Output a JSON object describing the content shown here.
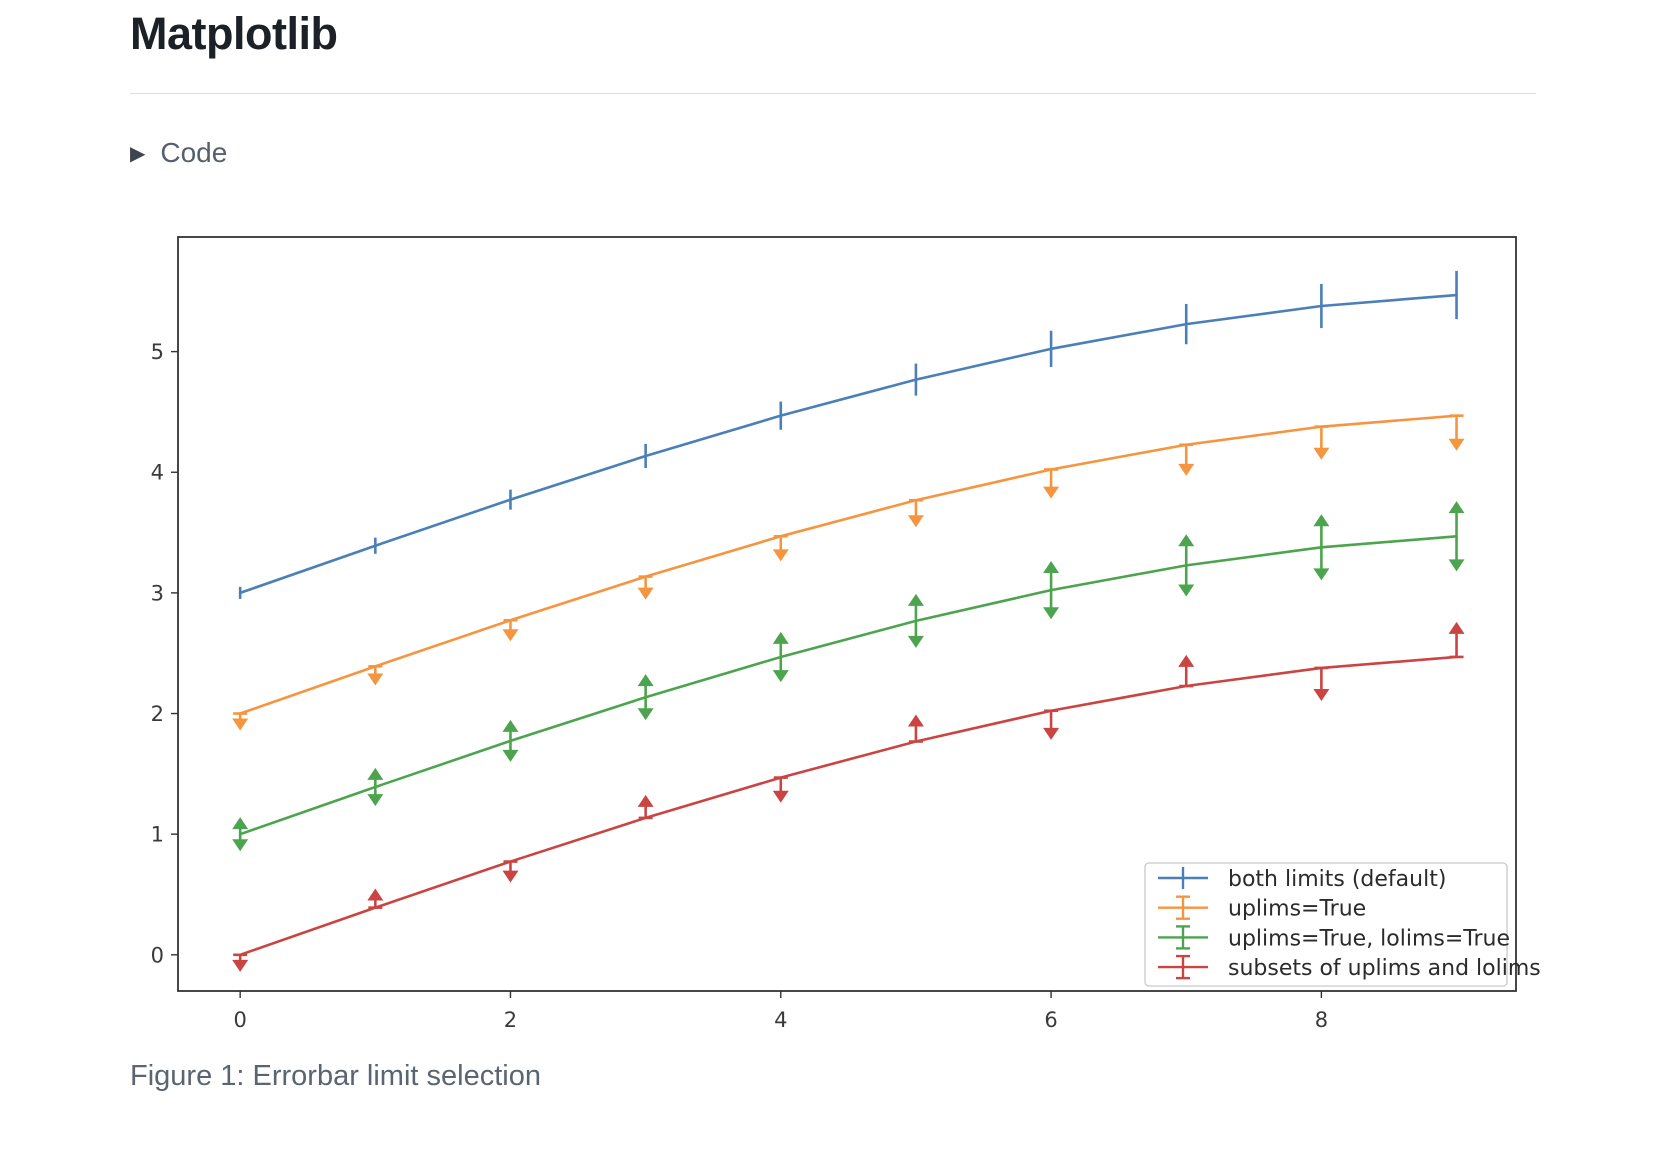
{
  "page": {
    "title": "Matplotlib",
    "code_toggle_label": "Code",
    "caption": "Figure 1: Errorbar limit selection"
  },
  "chart_data": {
    "type": "line",
    "title": "",
    "xlabel": "",
    "ylabel": "",
    "grid": false,
    "legend_position": "lower right",
    "xlim": [
      -0.46,
      9.44
    ],
    "ylim": [
      -0.3,
      5.95
    ],
    "xticks": [
      0,
      2,
      4,
      6,
      8
    ],
    "yticks": [
      0,
      1,
      2,
      3,
      4,
      5
    ],
    "axis_color": "#333333",
    "tick_label_color": "#3a3a3a",
    "legend_border_color": "#c9c9c9",
    "legend_text_color": "#2b2b2b",
    "x": [
      0,
      1,
      2,
      3,
      4,
      5,
      6,
      7,
      8,
      9
    ],
    "yerr": [
      0.05,
      0.067,
      0.083,
      0.1,
      0.117,
      0.133,
      0.15,
      0.167,
      0.183,
      0.2
    ],
    "series": [
      {
        "name": "both limits (default)",
        "color": "#4a7fb8",
        "limit_style": "bars",
        "values": [
          3.0,
          3.391,
          3.773,
          4.135,
          4.469,
          4.768,
          5.023,
          5.228,
          5.378,
          5.469
        ]
      },
      {
        "name": "uplims=True",
        "color": "#f6953f",
        "limit_style": "uplims",
        "values": [
          2.0,
          2.391,
          2.773,
          3.135,
          3.469,
          3.768,
          4.023,
          4.228,
          4.378,
          4.469
        ]
      },
      {
        "name": "uplims=True, lolims=True",
        "color": "#4da44f",
        "limit_style": "uplims_lolims",
        "values": [
          1.0,
          1.391,
          1.773,
          2.135,
          2.469,
          2.768,
          3.023,
          3.228,
          3.378,
          3.469
        ]
      },
      {
        "name": "subsets of uplims and lolims",
        "color": "#ca4542",
        "limit_style": "subsets",
        "uplims": [
          true,
          false,
          true,
          false,
          true,
          false,
          true,
          false,
          true,
          false
        ],
        "lolims": [
          false,
          true,
          false,
          true,
          false,
          true,
          false,
          true,
          false,
          true
        ],
        "values": [
          0.0,
          0.391,
          0.773,
          1.135,
          1.469,
          1.768,
          2.023,
          2.228,
          2.378,
          2.469
        ]
      }
    ]
  }
}
